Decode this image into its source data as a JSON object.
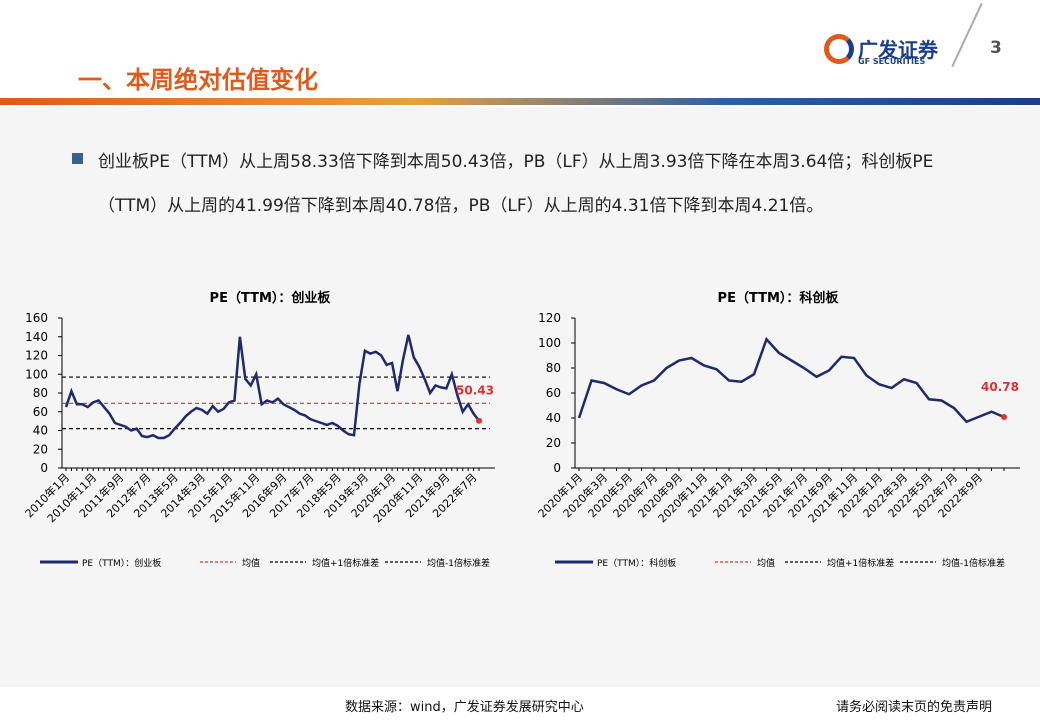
{
  "header": {
    "title": "一、本周绝对估值变化",
    "logo_cn": "广发证券",
    "logo_en": "GF SECURITIES",
    "page": "3"
  },
  "bullet": "创业板PE（TTM）从上周58.33倍下降到本周50.43倍，PB（LF）从上周3.93倍下降在本周3.64倍；科创板PE（TTM）从上周的41.99倍下降到本周40.78倍，PB（LF）从上周的4.31倍下降到本周4.21倍。",
  "footer": {
    "source": "数据来源：wind，广发证券发展研究中心",
    "disclaimer": "请务必阅读末页的免责声明"
  },
  "chart_data": [
    {
      "type": "line",
      "title": "PE（TTM）：创业板",
      "categories": [
        "2010年1月",
        null,
        null,
        null,
        null,
        "2010年11月",
        null,
        null,
        null,
        null,
        "2011年9月",
        null,
        null,
        null,
        null,
        "2012年7月",
        null,
        null,
        null,
        null,
        "2013年5月",
        null,
        null,
        null,
        null,
        "2014年3月",
        null,
        null,
        null,
        null,
        "2015年1月",
        null,
        null,
        null,
        null,
        "2015年11月",
        null,
        null,
        null,
        null,
        "2016年9月",
        null,
        null,
        null,
        null,
        "2017年7月",
        null,
        null,
        null,
        null,
        "2018年5月",
        null,
        null,
        null,
        null,
        "2019年3月",
        null,
        null,
        null,
        null,
        "2020年1月",
        null,
        null,
        null,
        null,
        "2020年11月",
        null,
        null,
        null,
        null,
        "2021年9月",
        null,
        null,
        null,
        null,
        "2022年7月",
        null
      ],
      "series": [
        {
          "name": "PE（TTM）：创业板",
          "color": "#1f2a6e",
          "values": [
            65,
            82,
            68,
            68,
            65,
            70,
            72,
            65,
            58,
            48,
            46,
            44,
            40,
            42,
            34,
            33,
            35,
            32,
            32,
            35,
            42,
            48,
            55,
            60,
            64,
            62,
            58,
            66,
            60,
            63,
            70,
            72,
            140,
            95,
            88,
            100,
            68,
            72,
            70,
            74,
            68,
            65,
            62,
            58,
            56,
            52,
            50,
            48,
            46,
            48,
            45,
            40,
            36,
            35,
            90,
            125,
            122,
            124,
            120,
            110,
            112,
            82,
            115,
            142,
            118,
            108,
            95,
            80,
            88,
            86,
            85,
            100,
            78,
            60,
            68,
            58,
            50.43
          ]
        }
      ],
      "reference_lines": [
        {
          "name": "均值",
          "color": "#e03030",
          "value": 69
        },
        {
          "name": "均值+1倍标准差",
          "color": "#000000",
          "value": 97
        },
        {
          "name": "均值-1倍标准差",
          "color": "#000000",
          "value": 42
        }
      ],
      "ylim": [
        0,
        160
      ],
      "yticks": [
        0,
        20,
        40,
        60,
        80,
        100,
        120,
        140,
        160
      ],
      "end_label_color": "#e03030"
    },
    {
      "type": "line",
      "title": "PE（TTM）：科创板",
      "categories": [
        "2020年1月",
        null,
        "2020年3月",
        null,
        "2020年5月",
        null,
        "2020年7月",
        null,
        "2020年9月",
        null,
        "2020年11月",
        null,
        "2021年1月",
        null,
        "2021年3月",
        null,
        "2021年5月",
        null,
        "2021年7月",
        null,
        "2021年9月",
        null,
        "2021年11月",
        null,
        "2022年1月",
        null,
        "2022年3月",
        null,
        "2022年5月",
        null,
        "2022年7月",
        null,
        "2022年9月",
        null,
        null
      ],
      "series": [
        {
          "name": "PE（TTM）：科创板",
          "color": "#1f2a6e",
          "values": [
            40,
            70,
            68,
            63,
            59,
            66,
            70,
            80,
            86,
            88,
            82,
            79,
            70,
            69,
            75,
            103,
            92,
            86,
            80,
            73,
            78,
            89,
            88,
            74,
            67,
            64,
            71,
            68,
            55,
            54,
            48,
            37,
            41,
            45,
            40.78
          ]
        }
      ],
      "reference_lines": [
        {
          "name": "均值",
          "color": "#e03030"
        },
        {
          "name": "均值+1倍标准差",
          "color": "#000000"
        },
        {
          "name": "均值-1倍标准差",
          "color": "#000000"
        }
      ],
      "ylim": [
        0,
        120
      ],
      "yticks": [
        0,
        20,
        40,
        60,
        80,
        100,
        120
      ],
      "end_label_color": "#e03030"
    }
  ]
}
